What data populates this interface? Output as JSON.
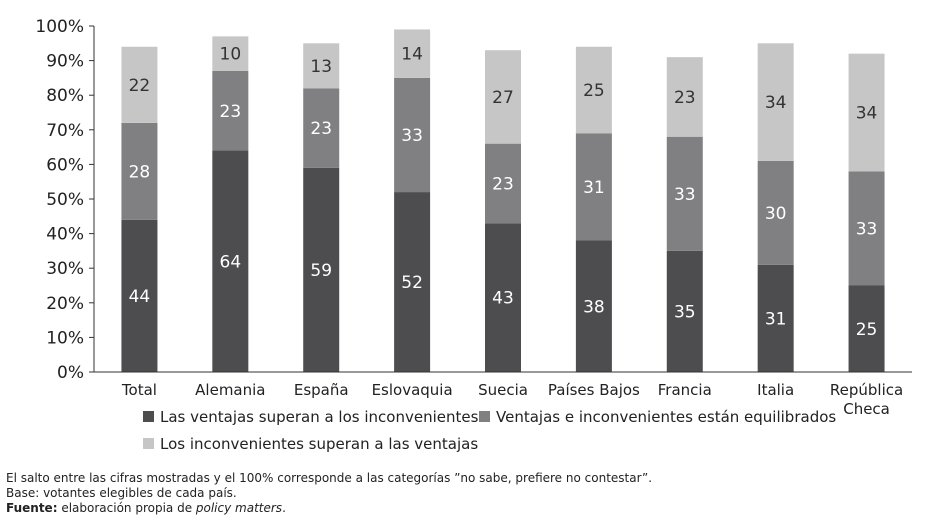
{
  "chart_data": {
    "type": "bar",
    "stacked": true,
    "categories": [
      "Total",
      "Alemania",
      "España",
      "Eslovaquia",
      "Suecia",
      "Países Bajos",
      "Francia",
      "Italia",
      "República Checa"
    ],
    "category_lines": [
      [
        "Total"
      ],
      [
        "Alemania"
      ],
      [
        "España"
      ],
      [
        "Eslovaquia"
      ],
      [
        "Suecia"
      ],
      [
        "Países Bajos"
      ],
      [
        "Francia"
      ],
      [
        "Italia"
      ],
      [
        "República",
        "Checa"
      ]
    ],
    "series": [
      {
        "name": "Las ventajas superan a los inconvenientes",
        "values": [
          44,
          64,
          59,
          52,
          43,
          38,
          35,
          31,
          25
        ],
        "color": "#4d4d4f",
        "label_color": "#ffffff"
      },
      {
        "name": "Ventajas e inconvenientes están equilibrados",
        "values": [
          28,
          23,
          23,
          33,
          23,
          31,
          33,
          30,
          33
        ],
        "color": "#808082",
        "label_color": "#ffffff"
      },
      {
        "name": "Los inconvenientes superan a las ventajas",
        "values": [
          22,
          10,
          13,
          14,
          27,
          25,
          23,
          34,
          34
        ],
        "color": "#c6c6c6",
        "label_color": "#333333"
      }
    ],
    "y_ticks": [
      "0%",
      "10%",
      "20%",
      "30%",
      "40%",
      "50%",
      "60%",
      "70%",
      "80%",
      "90%",
      "100%"
    ],
    "ylim": [
      0,
      100
    ],
    "grid": false,
    "legend": "bottom",
    "title": "",
    "xlabel": "",
    "ylabel": ""
  },
  "notes": {
    "line1": "El salto entre las cifras mostradas y el 100% corresponde a las categorías ”no sabe, prefiere no contestar”.",
    "line2": "Base: votantes elegibles de cada país.",
    "source_label": "Fuente:",
    "source_text_before": " elaboración propia de ",
    "source_italic": "policy matters",
    "source_text_after": "."
  }
}
